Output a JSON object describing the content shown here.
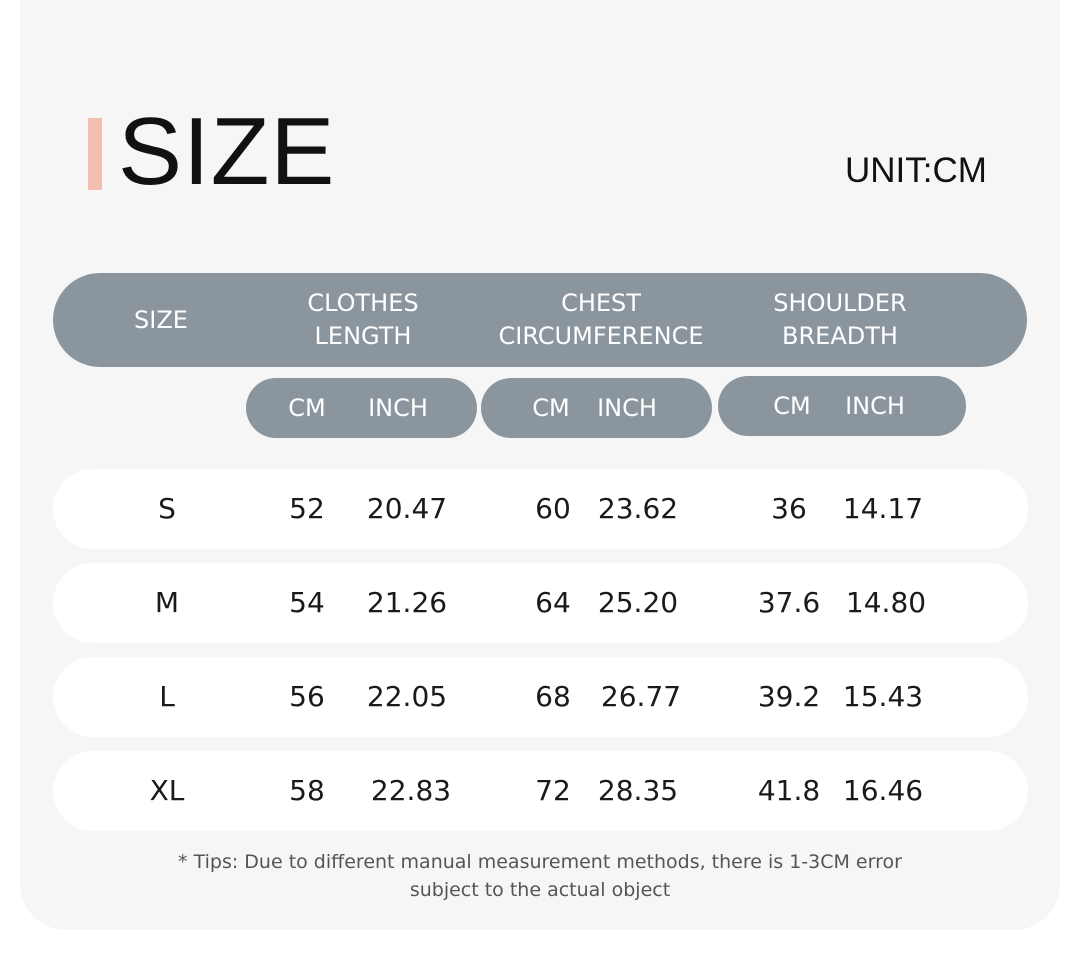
{
  "title": "SIZE",
  "unit_label": "UNIT:CM",
  "header": {
    "size": "SIZE",
    "clothes_length": [
      "CLOTHES",
      "LENGTH"
    ],
    "chest": [
      "CHEST",
      "CIRCUMFERENCE"
    ],
    "shoulder": [
      "SHOULDER",
      "BREADTH"
    ]
  },
  "subheader": {
    "clothes_length": [
      "CM",
      "INCH"
    ],
    "chest": [
      "CM",
      "INCH"
    ],
    "shoulder": [
      "CM",
      "INCH"
    ]
  },
  "rows": [
    {
      "size": "S",
      "length_cm": "52",
      "length_inch": "20.47",
      "chest_cm": "60",
      "chest_inch": "23.62",
      "shoulder_cm": "36",
      "shoulder_inch": "14.17"
    },
    {
      "size": "M",
      "length_cm": "54",
      "length_inch": "21.26",
      "chest_cm": "64",
      "chest_inch": "25.20",
      "shoulder_cm": "37.6",
      "shoulder_inch": "14.80"
    },
    {
      "size": "L",
      "length_cm": "56",
      "length_inch": "22.05",
      "chest_cm": "68",
      "chest_inch": "26.77",
      "shoulder_cm": "39.2",
      "shoulder_inch": "15.43"
    },
    {
      "size": "XL",
      "length_cm": "58",
      "length_inch": "22.83",
      "chest_cm": "72",
      "chest_inch": "28.35",
      "shoulder_cm": "41.8",
      "shoulder_inch": "16.46"
    }
  ],
  "tips": [
    "* Tips: Due to different manual measurement methods, there is 1-3CM error",
    "subject to the actual object"
  ],
  "colors": {
    "accent": "#f4bfb3",
    "header_bg": "#8a959e",
    "card_bg": "#f6f6f6",
    "row_bg": "#ffffff"
  }
}
